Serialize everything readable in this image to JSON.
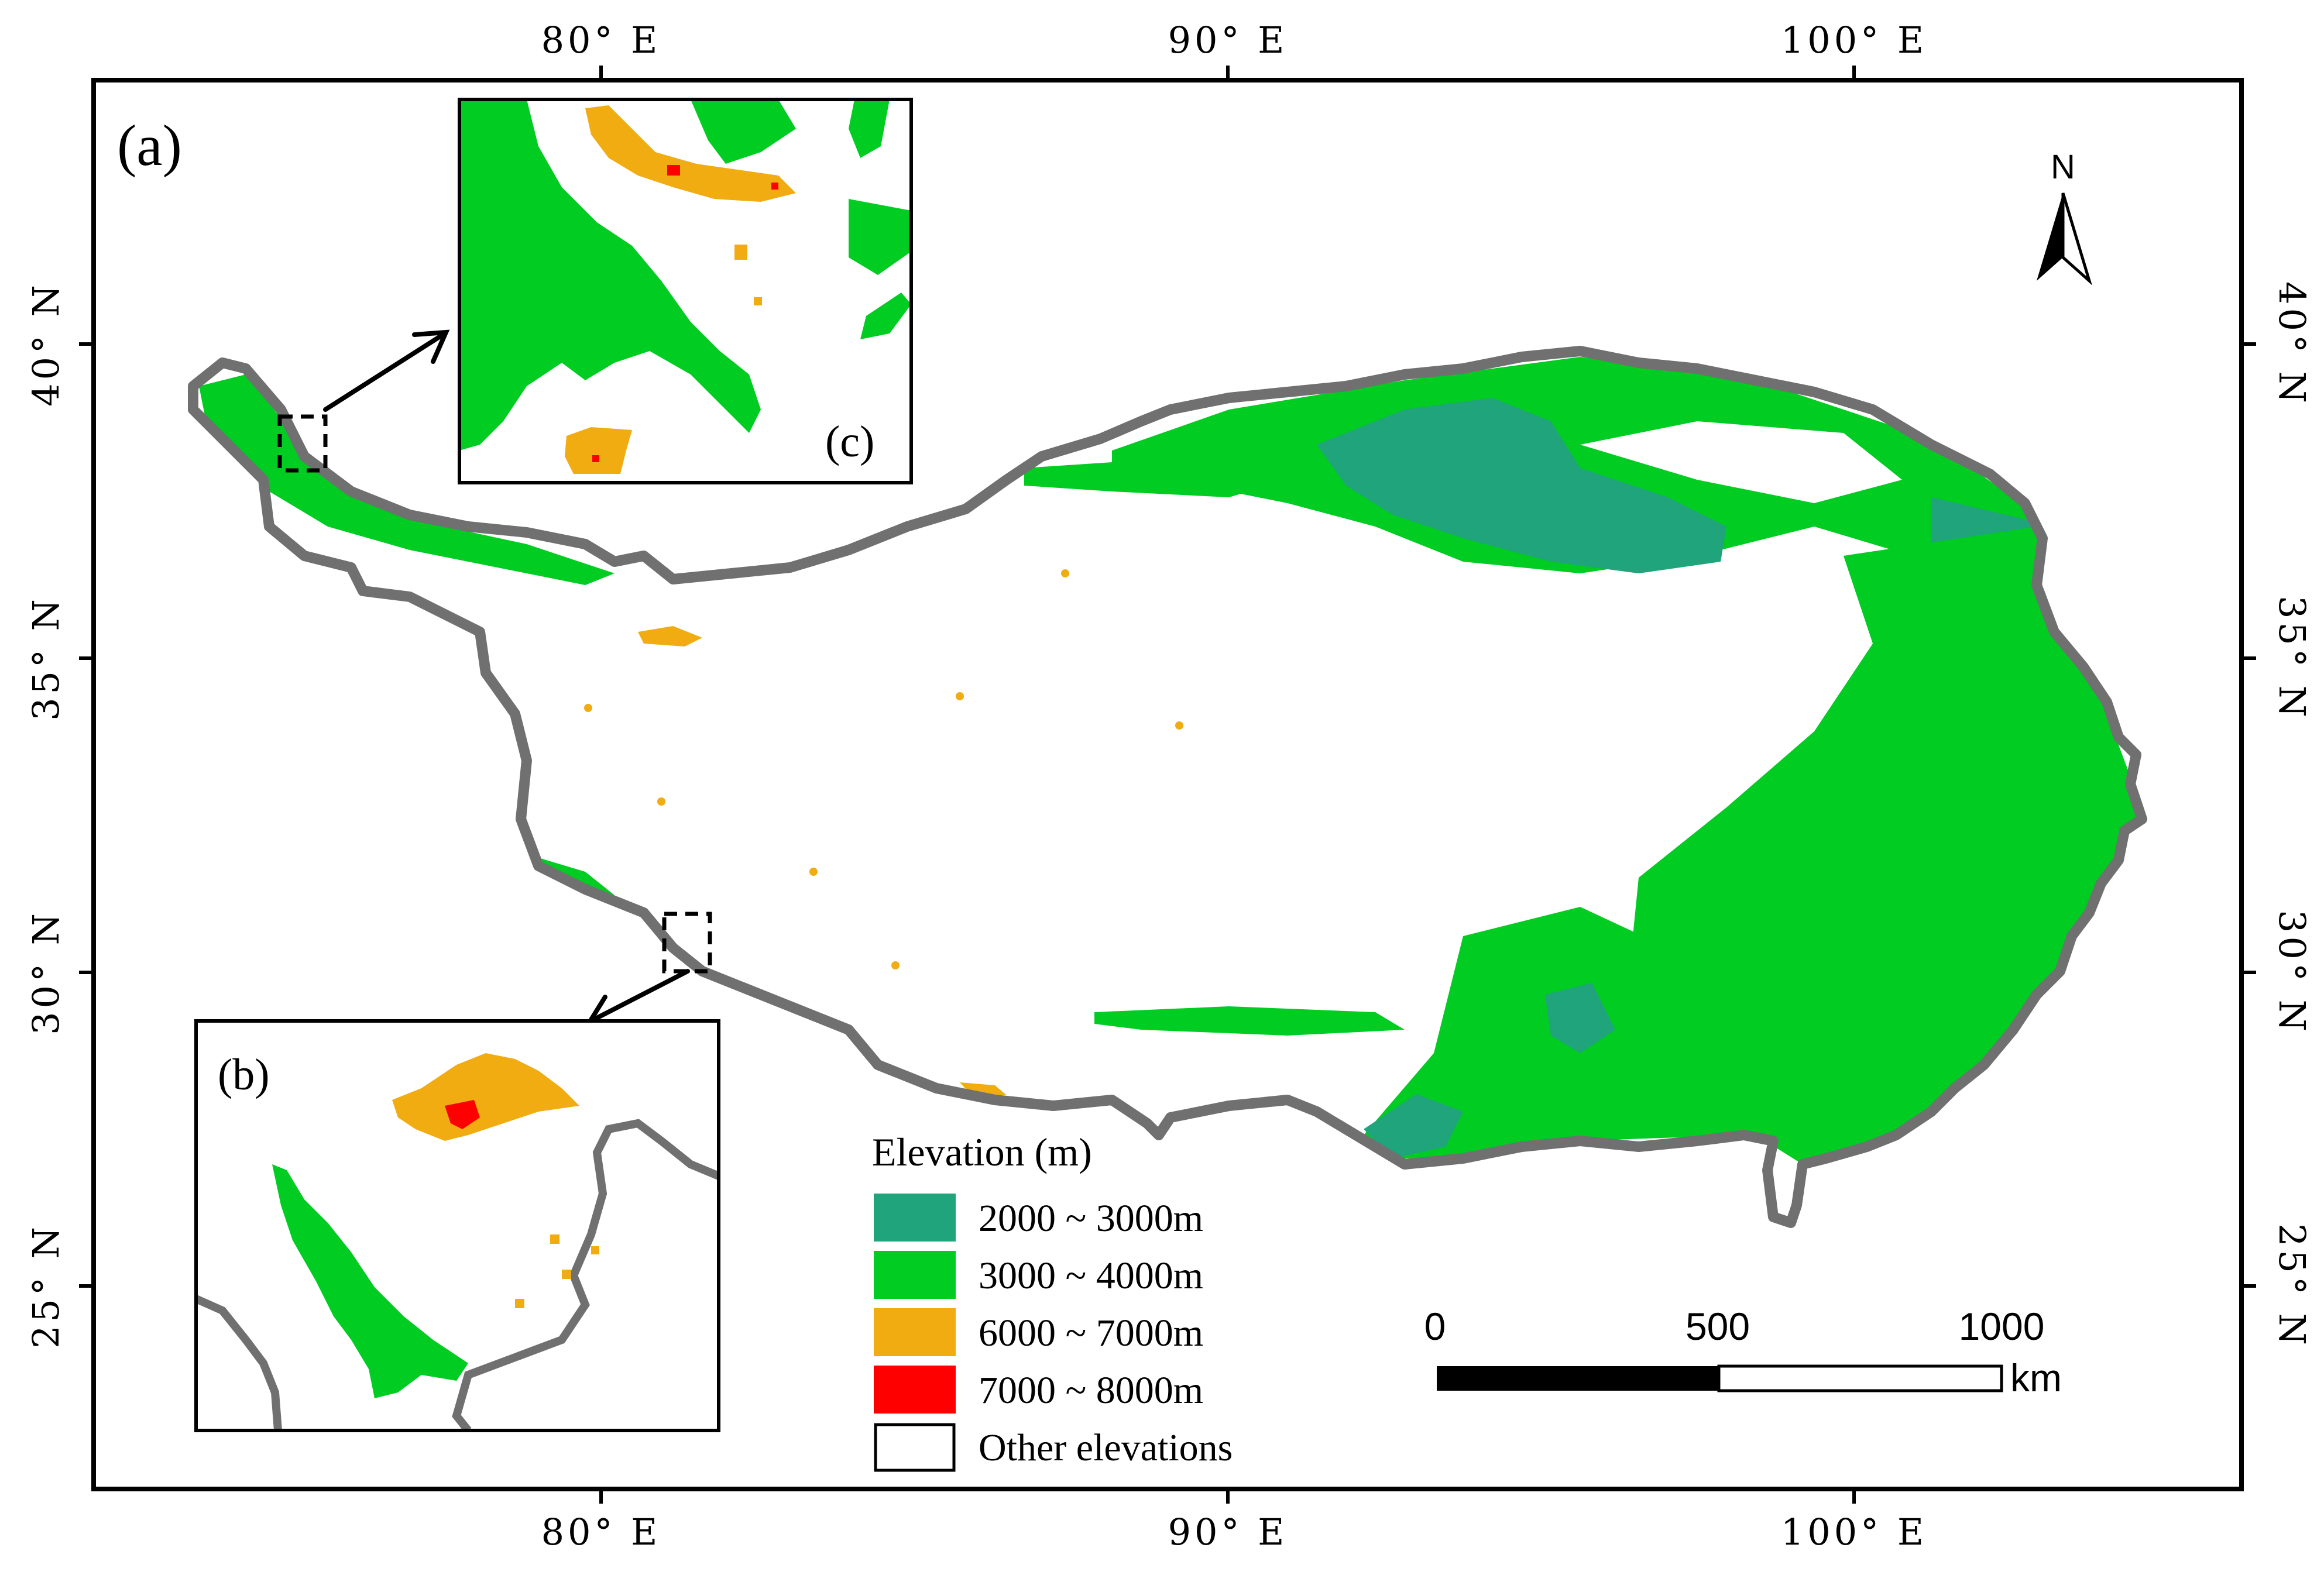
{
  "panels": {
    "main_label": "(a)",
    "inset_b_label": "(b)",
    "inset_c_label": "(c)"
  },
  "axes": {
    "longitude_labels": [
      "80° E",
      "90° E",
      "100° E"
    ],
    "latitude_labels": [
      "40° N",
      "35° N",
      "30° N",
      "25° N"
    ]
  },
  "legend": {
    "title": "Elevation (m)",
    "items": [
      {
        "label": "2000 ~ 3000m",
        "color": "#1fa47c"
      },
      {
        "label": "3000 ~ 4000m",
        "color": "#00cc22"
      },
      {
        "label": "6000 ~ 7000m",
        "color": "#f0ac10"
      },
      {
        "label": "7000 ~ 8000m",
        "color": "#ff0000"
      },
      {
        "label": "Other elevations",
        "color": "#ffffff"
      }
    ]
  },
  "scale_bar": {
    "ticks": [
      "0",
      "500",
      "1000"
    ],
    "unit": "km"
  },
  "north_arrow": {
    "label": "N"
  },
  "colors": {
    "boundary": "#707070",
    "frame": "#000000"
  }
}
